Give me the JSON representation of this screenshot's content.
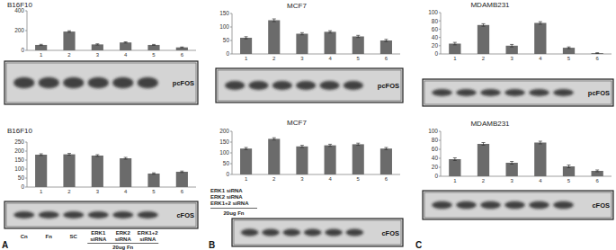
{
  "chart_data": [
    {
      "type": "bar",
      "title": "B16F10",
      "categories": [
        "1",
        "2",
        "3",
        "4",
        "5",
        "6"
      ],
      "values": [
        55,
        190,
        60,
        80,
        55,
        30
      ],
      "errors": [
        6,
        8,
        6,
        6,
        5,
        4
      ],
      "color": "#6b6b6b",
      "ylim": [
        0,
        400
      ],
      "yticks": [
        0,
        200,
        400
      ],
      "annotation": "pcFOS"
    },
    {
      "type": "bar",
      "title": "B16F10",
      "categories": [
        "1",
        "2",
        "3",
        "4",
        "5",
        "6"
      ],
      "values": [
        180,
        182,
        175,
        160,
        75,
        85
      ],
      "errors": [
        5,
        5,
        5,
        5,
        4,
        4
      ],
      "color": "#6b6b6b",
      "ylim": [
        0,
        250
      ],
      "yticks": [
        0,
        50,
        100,
        150,
        200,
        250
      ],
      "annotation": "cFOS"
    },
    {
      "type": "bar",
      "title": "MCF7",
      "categories": [
        "1",
        "2",
        "3",
        "4",
        "5",
        "6"
      ],
      "values": [
        60,
        125,
        75,
        82,
        65,
        50
      ],
      "errors": [
        4,
        5,
        4,
        4,
        4,
        4
      ],
      "color": "#6b6b6b",
      "ylim": [
        0,
        150
      ],
      "yticks": [
        0,
        50,
        100,
        150
      ],
      "annotation": "pcFOS"
    },
    {
      "type": "bar",
      "title": "MCF7",
      "categories": [
        "1",
        "2",
        "3",
        "4",
        "5",
        "6"
      ],
      "values": [
        120,
        165,
        130,
        135,
        140,
        120
      ],
      "errors": [
        5,
        5,
        5,
        5,
        5,
        5
      ],
      "color": "#6b6b6b",
      "ylim": [
        0,
        200
      ],
      "yticks": [
        0,
        50,
        100,
        150,
        200
      ],
      "annotation": "cFOS"
    },
    {
      "type": "bar",
      "title": "MDAMB231",
      "categories": [
        "1",
        "2",
        "3",
        "4",
        "5",
        "6"
      ],
      "values": [
        25,
        70,
        20,
        75,
        15,
        2
      ],
      "errors": [
        3,
        3,
        3,
        3,
        2,
        1
      ],
      "color": "#6b6b6b",
      "ylim": [
        0,
        100
      ],
      "yticks": [
        0,
        20,
        40,
        60,
        80,
        100
      ],
      "annotation": "pcFOS"
    },
    {
      "type": "bar",
      "title": "MDAMB231",
      "categories": [
        "1",
        "2",
        "3",
        "4",
        "5",
        "6"
      ],
      "values": [
        38,
        72,
        30,
        75,
        22,
        12
      ],
      "errors": [
        3,
        3,
        3,
        3,
        3,
        2
      ],
      "color": "#6b6b6b",
      "ylim": [
        0,
        100
      ],
      "yticks": [
        0,
        20,
        40,
        60,
        80,
        100
      ],
      "annotation": "cFOS"
    }
  ],
  "panels": [
    {
      "letter": "A",
      "lanes": [
        "Cn",
        "Fn",
        "SC",
        "ERK1 siRNA",
        "ERK2 siRNA",
        "ERK1+2 siRNA"
      ],
      "treatment": "20ug Fn"
    },
    {
      "letter": "B",
      "lanes": [
        "ERK1 siRNA",
        "ERK2 siRNA",
        "ERK1+2 siRNA"
      ],
      "treatment": "20ug Fn"
    },
    {
      "letter": "C"
    }
  ]
}
